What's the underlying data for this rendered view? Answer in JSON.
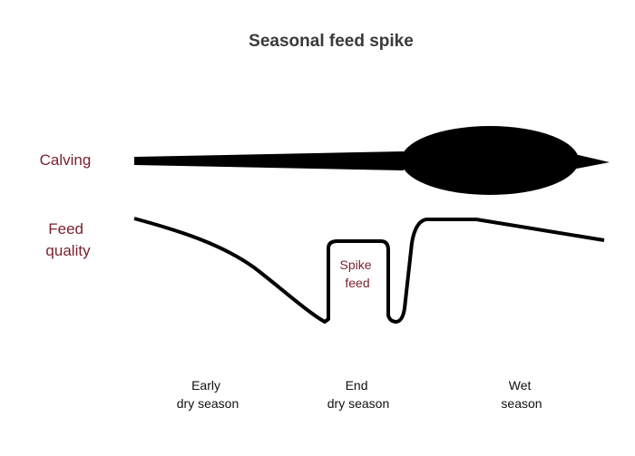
{
  "title": "Seasonal feed spike",
  "row_labels": {
    "calving": "Calving",
    "feed_quality": [
      "Feed",
      "quality"
    ]
  },
  "annotation": [
    "Spike",
    "feed"
  ],
  "seasons": [
    [
      "Early",
      "dry season"
    ],
    [
      "End",
      "dry season"
    ],
    [
      "Wet",
      "season"
    ]
  ]
}
